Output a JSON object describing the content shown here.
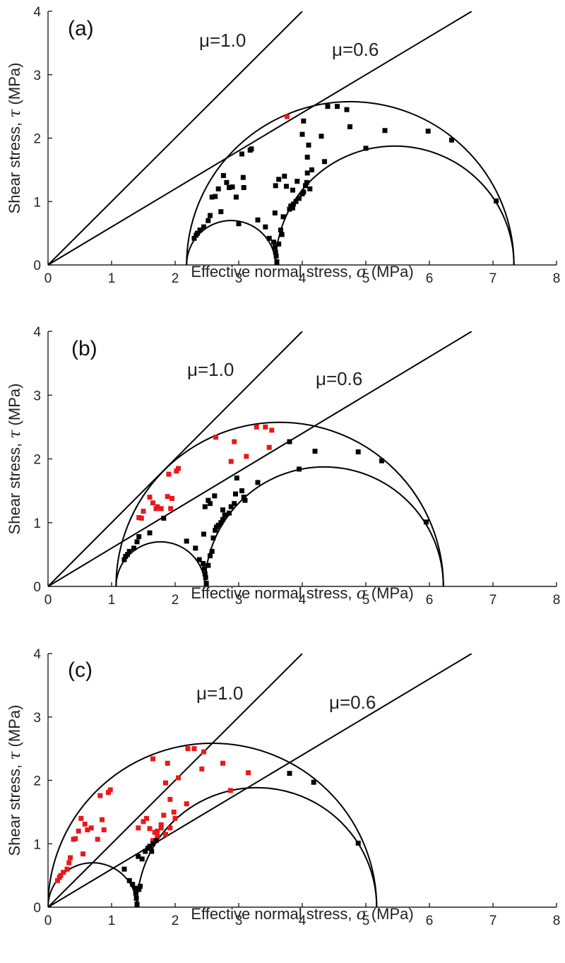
{
  "chart_data": [
    {
      "type": "scatter",
      "panel_label": "(a)",
      "xlabel_prefix": "Effective normal stress, ",
      "xlabel_symbol": "σ",
      "xlabel_suffix": " (MPa)",
      "ylabel_prefix": "Shear stress, ",
      "ylabel_symbol": "τ",
      "ylabel_suffix": " (MPa)",
      "xlim": [
        0,
        8
      ],
      "ylim": [
        0,
        4
      ],
      "xticks": [
        "0",
        "1",
        "2",
        "3",
        "4",
        "5",
        "6",
        "7",
        "8"
      ],
      "yticks": [
        "0",
        "1",
        "2",
        "3",
        "4"
      ],
      "friction_lines": [
        {
          "label": "μ=1.0",
          "slope": 1.0
        },
        {
          "label": "μ=0.6",
          "slope": 0.6
        }
      ],
      "mohr_circles": [
        {
          "sigma3": 2.18,
          "sigma1": 7.33
        },
        {
          "sigma3": 2.18,
          "sigma1": 3.58
        },
        {
          "sigma3": 3.58,
          "sigma1": 7.33
        }
      ],
      "series": [
        {
          "color": "#e8191b",
          "points": [
            [
              3.76,
              2.34
            ]
          ]
        },
        {
          "color": "#000000",
          "points": [
            [
              2.3,
              0.42
            ],
            [
              2.33,
              0.47
            ],
            [
              2.35,
              0.5
            ],
            [
              2.39,
              0.55
            ],
            [
              2.45,
              0.6
            ],
            [
              2.52,
              0.7
            ],
            [
              2.55,
              0.78
            ],
            [
              2.58,
              1.07
            ],
            [
              2.63,
              1.08
            ],
            [
              2.68,
              1.2
            ],
            [
              2.72,
              0.84
            ],
            [
              2.76,
              1.41
            ],
            [
              2.81,
              1.3
            ],
            [
              2.85,
              1.22
            ],
            [
              2.9,
              1.23
            ],
            [
              2.96,
              1.07
            ],
            [
              3.0,
              0.65
            ],
            [
              3.05,
              1.75
            ],
            [
              3.07,
              1.38
            ],
            [
              3.08,
              1.22
            ],
            [
              3.18,
              1.81
            ],
            [
              3.2,
              1.83
            ],
            [
              3.3,
              0.71
            ],
            [
              3.42,
              0.6
            ],
            [
              3.48,
              0.42
            ],
            [
              3.55,
              0.36
            ],
            [
              3.57,
              0.28
            ],
            [
              3.58,
              0.2
            ],
            [
              3.59,
              0.14
            ],
            [
              3.6,
              0.05
            ],
            [
              3.6,
              0.0
            ],
            [
              3.57,
              0.82
            ],
            [
              3.58,
              1.25
            ],
            [
              3.63,
              0.33
            ],
            [
              3.63,
              1.35
            ],
            [
              3.66,
              0.55
            ],
            [
              3.68,
              0.48
            ],
            [
              3.7,
              0.76
            ],
            [
              3.72,
              1.4
            ],
            [
              3.75,
              1.24
            ],
            [
              3.8,
              0.88
            ],
            [
              3.82,
              0.93
            ],
            [
              3.85,
              1.18
            ],
            [
              3.86,
              0.96
            ],
            [
              3.9,
              1.0
            ],
            [
              3.92,
              1.32
            ],
            [
              3.95,
              1.05
            ],
            [
              4.0,
              1.12
            ],
            [
              4.02,
              1.15
            ],
            [
              4.05,
              1.25
            ],
            [
              4.07,
              1.3
            ],
            [
              4.08,
              1.45
            ],
            [
              4.02,
              2.27
            ],
            [
              4.08,
              1.7
            ],
            [
              4.1,
              1.89
            ],
            [
              4.15,
              1.5
            ],
            [
              4.3,
              2.03
            ],
            [
              4.35,
              1.63
            ],
            [
              4.4,
              2.5
            ],
            [
              4.55,
              2.5
            ],
            [
              4.7,
              2.45
            ],
            [
              4.75,
              2.18
            ],
            [
              5.0,
              1.84
            ],
            [
              5.3,
              2.12
            ],
            [
              5.98,
              2.11
            ],
            [
              6.35,
              1.97
            ],
            [
              7.05,
              1.01
            ],
            [
              4.12,
              1.2
            ],
            [
              4.0,
              2.06
            ],
            [
              3.85,
              0.9
            ]
          ]
        }
      ]
    },
    {
      "type": "scatter",
      "panel_label": "(b)",
      "xlabel_prefix": "Effective normal stress, ",
      "xlabel_symbol": "σ",
      "xlabel_suffix": " (MPa)",
      "ylabel_prefix": "Shear stress, ",
      "ylabel_symbol": "τ",
      "ylabel_suffix": " (MPa)",
      "xlim": [
        0,
        8
      ],
      "ylim": [
        0,
        4
      ],
      "xticks": [
        "0",
        "1",
        "2",
        "3",
        "4",
        "5",
        "6",
        "7",
        "8"
      ],
      "yticks": [
        "0",
        "1",
        "2",
        "3",
        "4"
      ],
      "friction_lines": [
        {
          "label": "μ=1.0",
          "slope": 1.0
        },
        {
          "label": "μ=0.6",
          "slope": 0.6
        }
      ],
      "mohr_circles": [
        {
          "sigma3": 1.07,
          "sigma1": 6.22
        },
        {
          "sigma3": 1.07,
          "sigma1": 2.47
        },
        {
          "sigma3": 2.47,
          "sigma1": 6.22
        }
      ],
      "series": [
        {
          "color": "#e8191b",
          "points": [
            [
              1.43,
              1.08
            ],
            [
              1.47,
              1.07
            ],
            [
              1.5,
              1.18
            ],
            [
              1.6,
              1.4
            ],
            [
              1.65,
              1.31
            ],
            [
              1.7,
              1.22
            ],
            [
              1.72,
              1.25
            ],
            [
              1.78,
              1.22
            ],
            [
              1.88,
              1.41
            ],
            [
              1.9,
              1.76
            ],
            [
              1.93,
              1.22
            ],
            [
              1.95,
              1.38
            ],
            [
              2.02,
              1.81
            ],
            [
              2.05,
              1.85
            ],
            [
              2.64,
              2.34
            ],
            [
              2.88,
              1.96
            ],
            [
              2.93,
              2.27
            ],
            [
              3.12,
              2.04
            ],
            [
              3.28,
              2.5
            ],
            [
              3.42,
              2.5
            ],
            [
              3.48,
              2.18
            ],
            [
              3.52,
              2.45
            ]
          ]
        },
        {
          "color": "#000000",
          "points": [
            [
              1.2,
              0.42
            ],
            [
              1.22,
              0.47
            ],
            [
              1.25,
              0.5
            ],
            [
              1.28,
              0.55
            ],
            [
              1.35,
              0.6
            ],
            [
              1.4,
              0.7
            ],
            [
              1.43,
              0.78
            ],
            [
              1.6,
              0.84
            ],
            [
              1.82,
              1.07
            ],
            [
              2.18,
              0.71
            ],
            [
              2.32,
              0.6
            ],
            [
              2.38,
              0.42
            ],
            [
              2.44,
              0.36
            ],
            [
              2.46,
              0.28
            ],
            [
              2.47,
              0.2
            ],
            [
              2.48,
              0.14
            ],
            [
              2.49,
              0.05
            ],
            [
              2.49,
              0.0
            ],
            [
              2.52,
              0.33
            ],
            [
              2.55,
              0.48
            ],
            [
              2.58,
              0.55
            ],
            [
              2.45,
              0.82
            ],
            [
              2.47,
              1.25
            ],
            [
              2.52,
              1.35
            ],
            [
              2.6,
              0.76
            ],
            [
              2.63,
              0.88
            ],
            [
              2.65,
              0.93
            ],
            [
              2.68,
              0.96
            ],
            [
              2.72,
              1.0
            ],
            [
              2.75,
              1.05
            ],
            [
              2.78,
              1.12
            ],
            [
              2.85,
              1.15
            ],
            [
              2.88,
              1.25
            ],
            [
              2.93,
              1.3
            ],
            [
              2.95,
              1.45
            ],
            [
              2.97,
              1.7
            ],
            [
              3.05,
              1.5
            ],
            [
              3.08,
              1.4
            ],
            [
              3.1,
              1.35
            ],
            [
              3.3,
              1.63
            ],
            [
              3.8,
              2.27
            ],
            [
              3.95,
              1.84
            ],
            [
              4.2,
              2.12
            ],
            [
              4.88,
              2.11
            ],
            [
              5.25,
              1.97
            ],
            [
              5.95,
              1.01
            ],
            [
              2.62,
              1.42
            ],
            [
              2.75,
              1.2
            ],
            [
              2.55,
              1.3
            ]
          ]
        }
      ]
    },
    {
      "type": "scatter",
      "panel_label": "(c)",
      "xlabel_prefix": "Effective normal stress, ",
      "xlabel_symbol": "σ",
      "xlabel_suffix": " (MPa)",
      "ylabel_prefix": "Shear stress, ",
      "ylabel_symbol": "τ",
      "ylabel_suffix": " (MPa)",
      "xlim": [
        0,
        8
      ],
      "ylim": [
        0,
        4
      ],
      "xticks": [
        "0",
        "1",
        "2",
        "3",
        "4",
        "5",
        "6",
        "7",
        "8"
      ],
      "yticks": [
        "0",
        "1",
        "2",
        "3",
        "4"
      ],
      "friction_lines": [
        {
          "label": "μ=1.0",
          "slope": 1.0
        },
        {
          "label": "μ=0.6",
          "slope": 0.6
        }
      ],
      "mohr_circles": [
        {
          "sigma3": 0.0,
          "sigma1": 5.17
        },
        {
          "sigma3": 0.0,
          "sigma1": 1.4
        },
        {
          "sigma3": 1.4,
          "sigma1": 5.17
        }
      ],
      "series": [
        {
          "color": "#e8191b",
          "points": [
            [
              0.15,
              0.42
            ],
            [
              0.18,
              0.47
            ],
            [
              0.2,
              0.5
            ],
            [
              0.24,
              0.55
            ],
            [
              0.3,
              0.6
            ],
            [
              0.33,
              0.7
            ],
            [
              0.35,
              0.78
            ],
            [
              0.4,
              1.07
            ],
            [
              0.43,
              1.08
            ],
            [
              0.48,
              1.2
            ],
            [
              0.52,
              1.4
            ],
            [
              0.55,
              0.84
            ],
            [
              0.58,
              1.31
            ],
            [
              0.62,
              1.22
            ],
            [
              0.68,
              1.25
            ],
            [
              0.78,
              1.07
            ],
            [
              0.82,
              1.76
            ],
            [
              0.85,
              1.38
            ],
            [
              0.88,
              1.22
            ],
            [
              0.95,
              1.81
            ],
            [
              0.98,
              1.85
            ],
            [
              1.65,
              2.34
            ],
            [
              1.42,
              1.25
            ],
            [
              1.5,
              1.35
            ],
            [
              1.55,
              1.4
            ],
            [
              1.6,
              1.24
            ],
            [
              1.65,
              1.05
            ],
            [
              1.72,
              1.2
            ],
            [
              1.78,
              1.3
            ],
            [
              1.82,
              1.45
            ],
            [
              1.85,
              1.15
            ],
            [
              1.85,
              1.96
            ],
            [
              1.88,
              2.27
            ],
            [
              1.92,
              1.7
            ],
            [
              1.92,
              1.25
            ],
            [
              1.98,
              1.5
            ],
            [
              2.0,
              1.4
            ],
            [
              2.05,
              2.04
            ],
            [
              2.18,
              1.63
            ],
            [
              2.2,
              2.5
            ],
            [
              2.3,
              2.5
            ],
            [
              2.42,
              2.18
            ],
            [
              2.45,
              2.45
            ],
            [
              2.75,
              2.27
            ],
            [
              2.87,
              1.84
            ],
            [
              3.15,
              2.12
            ],
            [
              1.72,
              1.12
            ],
            [
              1.78,
              1.25
            ],
            [
              1.68,
              1.18
            ]
          ]
        },
        {
          "color": "#000000",
          "points": [
            [
              1.2,
              0.6
            ],
            [
              1.28,
              0.42
            ],
            [
              1.33,
              0.36
            ],
            [
              1.37,
              0.3
            ],
            [
              1.38,
              0.22
            ],
            [
              1.39,
              0.14
            ],
            [
              1.4,
              0.05
            ],
            [
              1.4,
              0.0
            ],
            [
              1.42,
              0.8
            ],
            [
              1.43,
              0.28
            ],
            [
              1.45,
              0.33
            ],
            [
              1.48,
              0.76
            ],
            [
              1.53,
              0.88
            ],
            [
              1.57,
              0.93
            ],
            [
              1.6,
              0.96
            ],
            [
              1.63,
              0.88
            ],
            [
              1.65,
              1.0
            ],
            [
              1.7,
              1.05
            ],
            [
              3.8,
              2.11
            ],
            [
              4.18,
              1.97
            ],
            [
              4.88,
              1.01
            ]
          ]
        }
      ]
    }
  ]
}
